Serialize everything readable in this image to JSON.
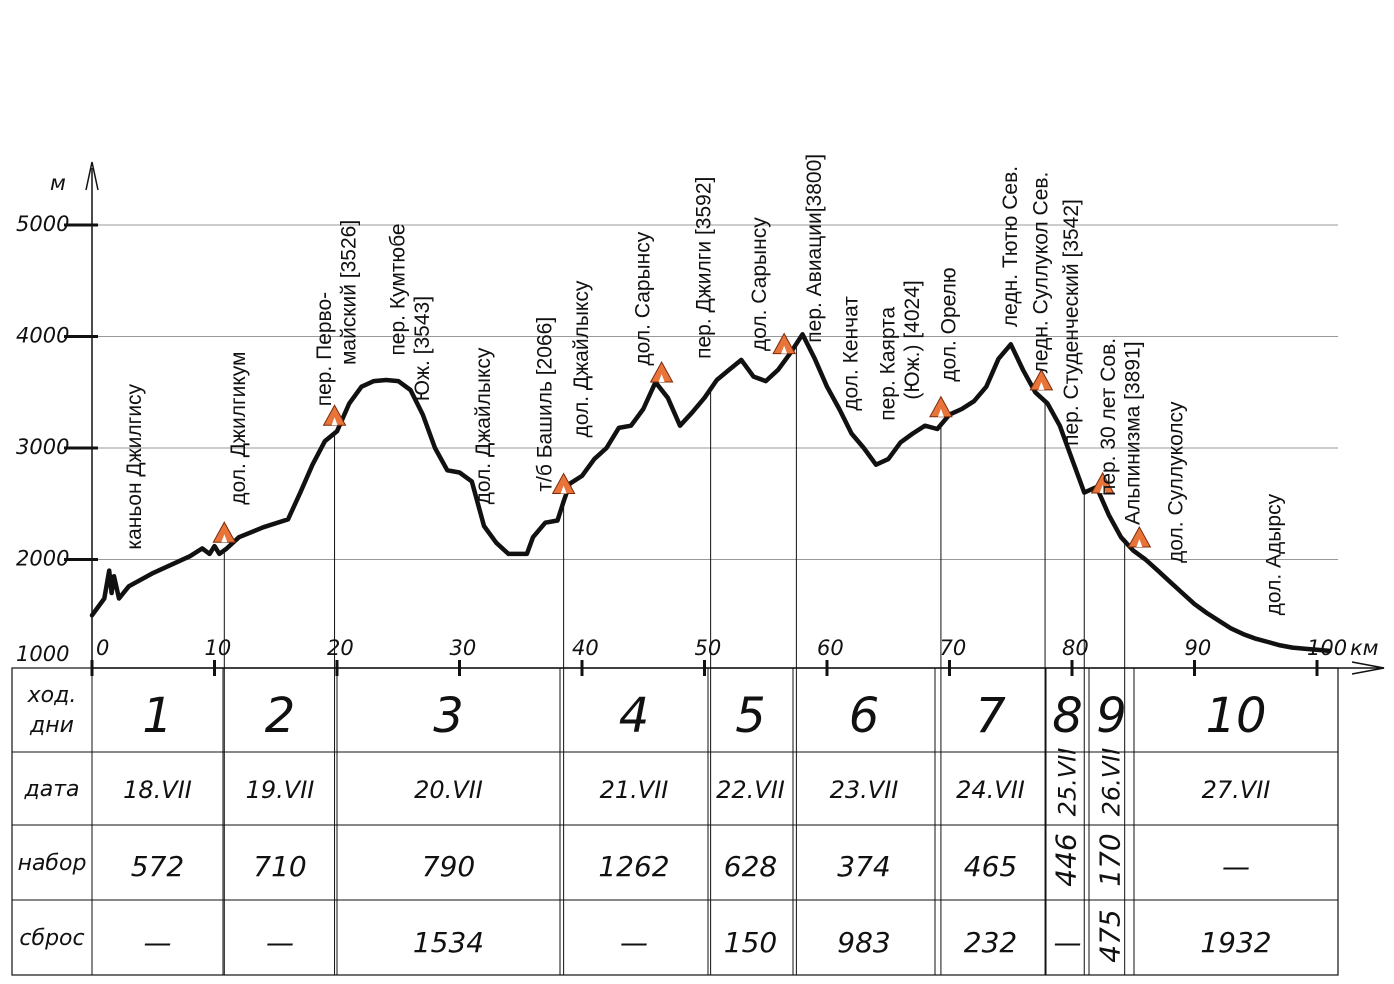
{
  "chart_data": {
    "type": "line",
    "units": {
      "y": "м",
      "x": "км"
    },
    "y_ticks": [
      "1000",
      "2000",
      "3000",
      "4000",
      "5000"
    ],
    "x_ticks": [
      "0",
      "10",
      "20",
      "30",
      "40",
      "50",
      "60",
      "70",
      "80",
      "90",
      "100"
    ],
    "xlim": [
      0,
      101
    ],
    "ylim": [
      1000,
      5000
    ],
    "profile": {
      "x": [
        0,
        1,
        1.4,
        1.6,
        1.8,
        2.2,
        3,
        5,
        8,
        9,
        9.6,
        10,
        10.4,
        11,
        12,
        14,
        16,
        17,
        18,
        19,
        20,
        21,
        22,
        23,
        24,
        25,
        26,
        27,
        28,
        29,
        30,
        31,
        32,
        33,
        34,
        35,
        35.5,
        36,
        37,
        38,
        38.5,
        39,
        40,
        41,
        42,
        43,
        44,
        45,
        46,
        47,
        48,
        49,
        50,
        51,
        52,
        53,
        54,
        55,
        56,
        57,
        58,
        59,
        60,
        61,
        62,
        63,
        64,
        65,
        66,
        67,
        68,
        69,
        70,
        71,
        72,
        73,
        74,
        75,
        76,
        77,
        78,
        79,
        80,
        81,
        82,
        83,
        84,
        85,
        86,
        87,
        88,
        89,
        90,
        91,
        92,
        93,
        94,
        95,
        96,
        97,
        98,
        99,
        100,
        101
      ],
      "y": [
        1500,
        1650,
        1900,
        1700,
        1850,
        1650,
        1760,
        1880,
        2030,
        2100,
        2050,
        2120,
        2050,
        2100,
        2200,
        2290,
        2360,
        2600,
        2850,
        3060,
        3150,
        3400,
        3550,
        3600,
        3610,
        3600,
        3520,
        3300,
        3000,
        2800,
        2780,
        2700,
        2300,
        2150,
        2050,
        2050,
        2050,
        2200,
        2330,
        2350,
        2520,
        2680,
        2750,
        2900,
        3000,
        3180,
        3200,
        3350,
        3590,
        3450,
        3200,
        3320,
        3450,
        3610,
        3700,
        3790,
        3640,
        3600,
        3700,
        3850,
        4020,
        3800,
        3550,
        3350,
        3130,
        3000,
        2850,
        2900,
        3050,
        3130,
        3200,
        3170,
        3300,
        3350,
        3420,
        3550,
        3800,
        3930,
        3700,
        3500,
        3400,
        3200,
        2900,
        2600,
        2650,
        2400,
        2200,
        2080,
        2000,
        1900,
        1800,
        1700,
        1600,
        1520,
        1450,
        1380,
        1330,
        1290,
        1260,
        1230,
        1210,
        1200,
        1190,
        1180
      ]
    },
    "annotations": [
      {
        "text": "каньон Джилгису",
        "x": 4
      },
      {
        "text": "дол. Джилгикум",
        "x": 12.5
      },
      {
        "text": "пер. Перво-",
        "x": 19.5
      },
      {
        "text": "майский [3526]",
        "x": 21.5
      },
      {
        "text": "пер. Кумтюбе",
        "x": 25.5
      },
      {
        "text": "Юж. [3543]",
        "x": 27.5
      },
      {
        "text": "дол. Джайлыксу",
        "x": 32.5
      },
      {
        "text": "т/б Башиль [2066]",
        "x": 37.5
      },
      {
        "text": "дол. Джайлыксу",
        "x": 40.5
      },
      {
        "text": "дол. Сарынсу",
        "x": 45.5
      },
      {
        "text": "пер. Джилги [3592]",
        "x": 50.5
      },
      {
        "text": "дол. Сарынсу",
        "x": 55
      },
      {
        "text": "пер. Авиации[3800]",
        "x": 59.5
      },
      {
        "text": "дол. Кенчат",
        "x": 62.5
      },
      {
        "text": "пер. Каярта",
        "x": 65.5
      },
      {
        "text": "(Юж.) [4024]",
        "x": 67.5
      },
      {
        "text": "дол. Орелю",
        "x": 70.5
      },
      {
        "text": "ледн. Тютю Сев.",
        "x": 75.5
      },
      {
        "text": "ледн. Суллукол Сев.",
        "x": 78
      },
      {
        "text": "пер. Студенческий [3542]",
        "x": 80.5
      },
      {
        "text": "пер. 30 лет Сов.",
        "x": 83.5
      },
      {
        "text": "Альпинизма [3891]",
        "x": 85.5
      },
      {
        "text": "дол. Суллуколсу",
        "x": 89
      },
      {
        "text": "дол. Адырсу",
        "x": 97
      }
    ],
    "camps_km": [
      10.8,
      19.8,
      38.5,
      46.5,
      56.5,
      69.3,
      77.5,
      82.5,
      85.5
    ]
  },
  "table": {
    "row_headers": {
      "days_1": "ход.",
      "days_2": "дни",
      "date": "дата",
      "gain": "набор",
      "loss": "сброс"
    },
    "columns": [
      {
        "day": "1",
        "date": "18.VII",
        "gain": "572",
        "loss": "—"
      },
      {
        "day": "2",
        "date": "19.VII",
        "gain": "710",
        "loss": "—"
      },
      {
        "day": "3",
        "date": "20.VII",
        "gain": "790",
        "loss": "1534"
      },
      {
        "day": "4",
        "date": "21.VII",
        "gain": "1262",
        "loss": "—"
      },
      {
        "day": "5",
        "date": "22.VII",
        "gain": "628",
        "loss": "150"
      },
      {
        "day": "6",
        "date": "23.VII",
        "gain": "374",
        "loss": "983"
      },
      {
        "day": "7",
        "date": "24.VII",
        "gain": "465",
        "loss": "232"
      },
      {
        "day": "8",
        "date": "25.VII",
        "gain": "446",
        "loss": "—"
      },
      {
        "day": "9",
        "date": "26.VII",
        "gain": "170",
        "loss": "475"
      },
      {
        "day": "10",
        "date": "27.VII",
        "gain": "—",
        "loss": "1932"
      }
    ]
  },
  "colors": {
    "line": "#111111",
    "grid": "#999999",
    "camp": "#e8743a"
  }
}
